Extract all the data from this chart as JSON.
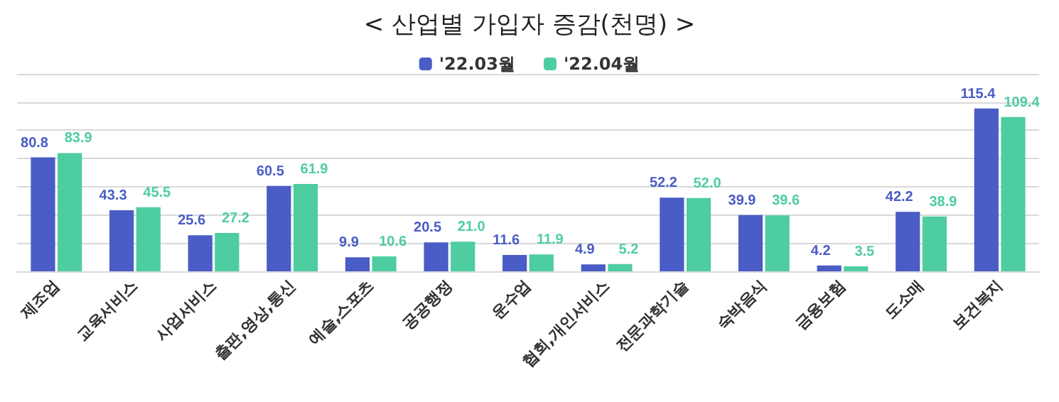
{
  "chart_data": {
    "type": "bar",
    "title": "< 산업별 가입자 증감(천명) >",
    "categories": [
      "제조업",
      "교육서비스",
      "사업서비스",
      "출판,영상,통신",
      "예술,스포츠",
      "공공행정",
      "운수업",
      "협회,개인서비스",
      "전문과학기술",
      "숙박음식",
      "금융보험",
      "도소매",
      "보건복지"
    ],
    "series": [
      {
        "name": "'22.03월",
        "color": "#4a5cc5",
        "values": [
          80.8,
          43.3,
          25.6,
          60.5,
          9.9,
          20.5,
          11.6,
          4.9,
          52.2,
          39.9,
          4.2,
          42.2,
          115.4
        ]
      },
      {
        "name": "'22.04월",
        "color": "#4ecda0",
        "values": [
          83.9,
          45.5,
          27.2,
          61.9,
          10.6,
          21.0,
          11.9,
          5.2,
          52.0,
          39.6,
          3.5,
          38.9,
          109.4
        ],
        "value_labels": [
          "83.9",
          "45.5",
          "27.2",
          "61.9",
          "10.6",
          "21.0",
          "11.9",
          "5.2",
          "52.0",
          "39.6",
          "3.5",
          "38.9",
          "109.4"
        ]
      }
    ],
    "ylim": [
      0,
      140
    ],
    "yticks": [
      {
        "value": 0,
        "label": null
      },
      {
        "value": 20,
        "label": null
      },
      {
        "value": 40,
        "label": null
      },
      {
        "value": 60,
        "label": null
      },
      {
        "value": 80,
        "label": null
      },
      {
        "value": 100,
        "label": null
      },
      {
        "value": 120,
        "label": null
      },
      {
        "value": 140,
        "label": null
      }
    ],
    "tick_labels": "x",
    "grid": "y",
    "legend": "top",
    "data_labels": true
  }
}
